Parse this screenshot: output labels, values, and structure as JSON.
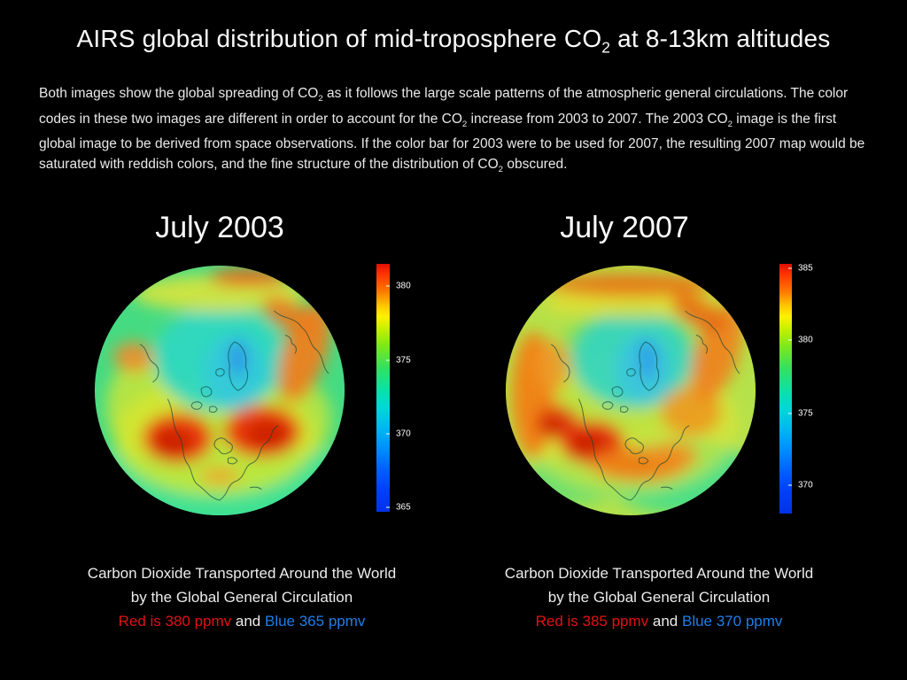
{
  "colors": {
    "background": "#000000",
    "text_primary": "#f2f2f2",
    "caption_red": "#e21212",
    "caption_blue": "#1e7ee8",
    "colormap": "jet (red high to blue low)"
  },
  "title": {
    "segments": [
      {
        "text": "AIRS global distribution of mid-troposphere CO"
      },
      {
        "text": "2",
        "sub": true
      },
      {
        "text": " at 8-13km altitudes"
      }
    ]
  },
  "intro": {
    "segments": [
      {
        "text": "Both images show the global spreading of CO"
      },
      {
        "text": "2",
        "sub": true
      },
      {
        "text": " as it follows the large scale patterns of the atmospheric general circulations. The color codes in these two images are different in order to account for the CO"
      },
      {
        "text": "2",
        "sub": true
      },
      {
        "text": " increase from 2003 to 2007. The 2003 CO"
      },
      {
        "text": "2",
        "sub": true
      },
      {
        "text": " image is the first global image to be derived from space observations. If the color bar for 2003 were to be used for 2007, the resulting 2007 map would be saturated with reddish colors, and the fine structure of the distribution of CO"
      },
      {
        "text": "2",
        "sub": true
      },
      {
        "text": " obscured."
      }
    ]
  },
  "panels": [
    {
      "label": "July 2003",
      "colorbar": {
        "ticks": [
          "380",
          "375",
          "370",
          "365"
        ]
      },
      "caption": {
        "line1": "Carbon Dioxide Transported Around the World",
        "line2": "by the Global General Circulation",
        "line3_segments": [
          {
            "text": "Red is 380 ppmv",
            "color": "#e21212"
          },
          {
            "text": " and ",
            "color": "#ededed"
          },
          {
            "text": "Blue 365 ppmv",
            "color": "#1e7ee8"
          }
        ]
      }
    },
    {
      "label": "July 2007",
      "colorbar": {
        "ticks": [
          "385",
          "380",
          "375",
          "370"
        ]
      },
      "caption": {
        "line1": "Carbon Dioxide Transported Around the World",
        "line2": "by the Global General Circulation",
        "line3_segments": [
          {
            "text": "Red is 385 ppmv",
            "color": "#e21212"
          },
          {
            "text": " and ",
            "color": "#ededed"
          },
          {
            "text": "Blue 370 ppmv",
            "color": "#1e7ee8"
          }
        ]
      }
    }
  ],
  "chart_data": [
    {
      "type": "heatmap",
      "title": "July 2003",
      "subtitle": "AIRS mid-troposphere CO2 concentration, orthographic globe centered on North America / Arctic",
      "units": "ppmv",
      "colormap": "jet",
      "colorbar": {
        "orientation": "vertical",
        "ticks": [
          380,
          375,
          370,
          365
        ],
        "range": [
          365,
          381
        ]
      },
      "annotations": [
        "Red is 380 ppmv",
        "Blue 365 ppmv"
      ],
      "features": [
        "cyan/blue low CO2 over Arctic and Greenland",
        "red highs ~380 ppmv over southwestern US and western Atlantic",
        "orange band along northwest Pacific rim",
        "green background ~372-375 ppmv"
      ]
    },
    {
      "type": "heatmap",
      "title": "July 2007",
      "subtitle": "AIRS mid-troposphere CO2 concentration, orthographic globe centered on North America / Arctic",
      "units": "ppmv",
      "colormap": "jet",
      "colorbar": {
        "orientation": "vertical",
        "ticks": [
          385,
          380,
          375,
          370
        ],
        "range": [
          368,
          385
        ]
      },
      "annotations": [
        "Red is 385 ppmv",
        "Blue 370 ppmv"
      ],
      "features": [
        "cyan low CO2 over Arctic and Greenland",
        "red highs ~385 ppmv over southwestern US and west Pacific",
        "broad yellow-orange mid-latitudes",
        "orange band over Gulf of Mexico / Atlantic"
      ]
    }
  ]
}
